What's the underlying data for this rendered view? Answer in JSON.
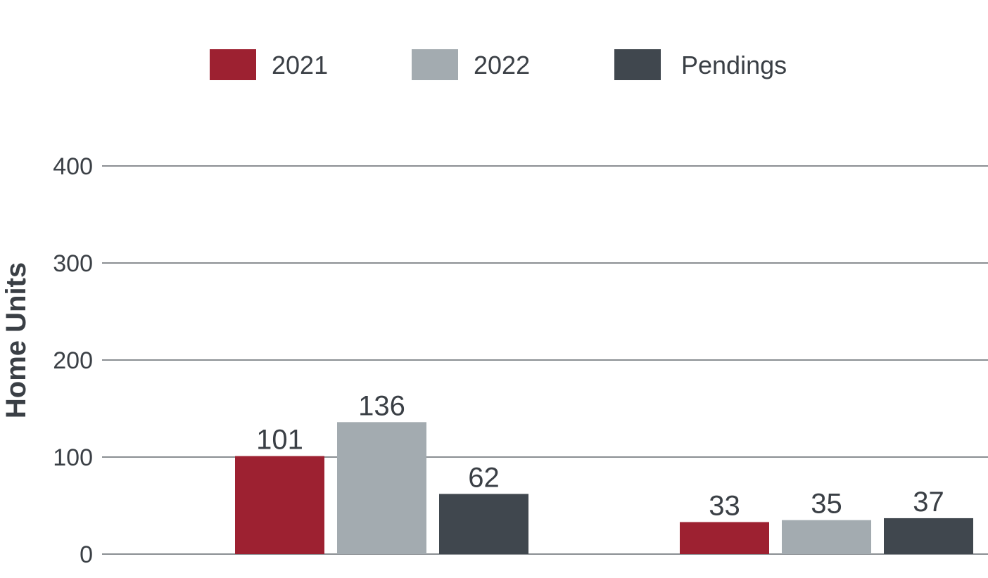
{
  "chart_data": {
    "type": "bar",
    "ylabel": "Home Units",
    "ylim": [
      0,
      400
    ],
    "yticks": [
      0,
      100,
      200,
      300,
      400
    ],
    "categories": [
      "",
      ""
    ],
    "series": [
      {
        "name": "2021",
        "color": "#9d2131",
        "values": [
          101,
          33
        ]
      },
      {
        "name": "2022",
        "color": "#a3abb0",
        "values": [
          136,
          35
        ]
      },
      {
        "name": "Pendings",
        "color": "#40474e",
        "values": [
          62,
          37
        ]
      }
    ],
    "grid": true,
    "legend": "top"
  }
}
